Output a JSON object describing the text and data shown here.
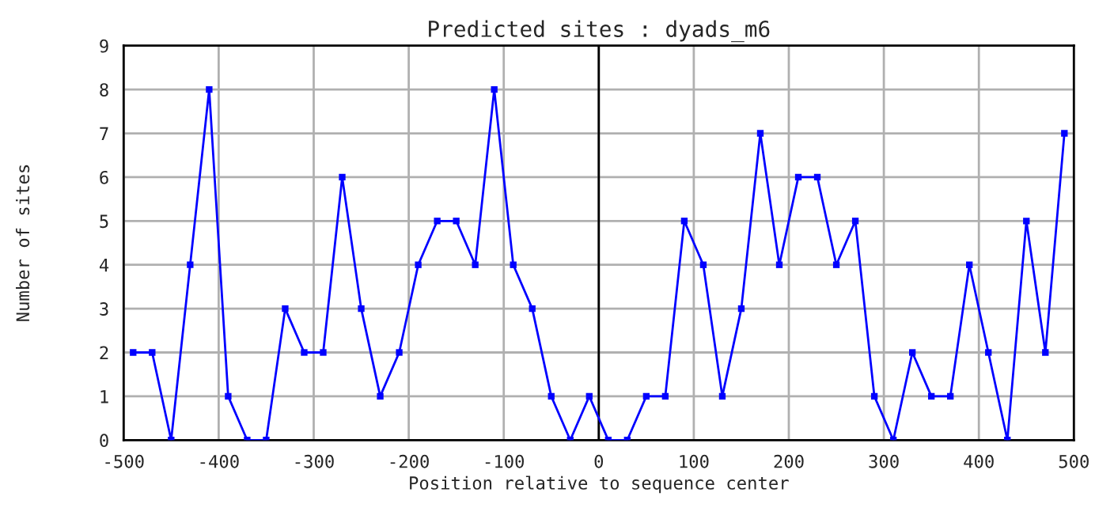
{
  "chart_data": {
    "type": "line",
    "title": "Predicted sites : dyads_m6",
    "xlabel": "Position relative to sequence center",
    "ylabel": "Number of sites",
    "x": [
      -490,
      -470,
      -450,
      -430,
      -410,
      -390,
      -370,
      -350,
      -330,
      -310,
      -290,
      -270,
      -250,
      -230,
      -210,
      -190,
      -170,
      -150,
      -130,
      -110,
      -90,
      -70,
      -50,
      -30,
      -10,
      10,
      30,
      50,
      70,
      90,
      110,
      130,
      150,
      170,
      190,
      210,
      230,
      250,
      270,
      290,
      310,
      330,
      350,
      370,
      390,
      410,
      430,
      450,
      470,
      490
    ],
    "series": [
      {
        "color": "#0000ff",
        "values": [
          2,
          2,
          0,
          4,
          8,
          1,
          0,
          0,
          3,
          2,
          2,
          6,
          3,
          1,
          2,
          4,
          5,
          5,
          4,
          8,
          4,
          3,
          1,
          0,
          1,
          0,
          0,
          1,
          1,
          5,
          4,
          1,
          3,
          7,
          4,
          6,
          6,
          4,
          5,
          1,
          0,
          2,
          1,
          1,
          4,
          2,
          0,
          5,
          2,
          7
        ]
      }
    ],
    "xlim": [
      -500,
      500
    ],
    "xticks": [
      -500,
      -400,
      -300,
      -200,
      -100,
      0,
      100,
      200,
      300,
      400,
      500
    ],
    "ylim": [
      0,
      9
    ],
    "yticks": [
      0,
      1,
      2,
      3,
      4,
      5,
      6,
      7,
      8,
      9
    ],
    "ref_lines": [
      {
        "axis": "x",
        "value": 0,
        "color": "#000000"
      }
    ],
    "grid": true,
    "marker": "square",
    "line_style": "solid"
  }
}
